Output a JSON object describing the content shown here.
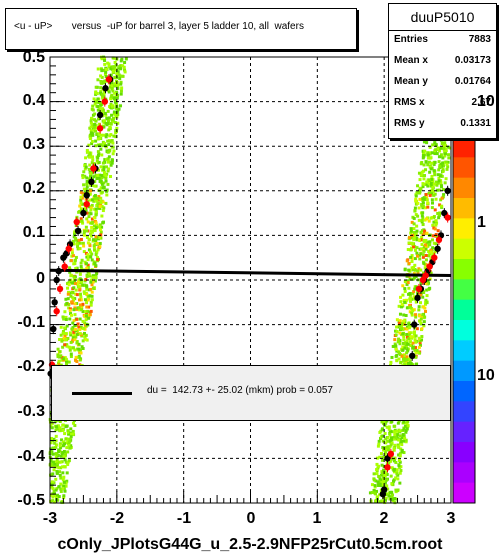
{
  "chart_data": {
    "type": "scatter",
    "title": "<u - uP>       versus  -uP for barrel 3, layer 5 ladder 10, all  wafers",
    "xlim": [
      -3,
      3
    ],
    "ylim": [
      -0.5,
      0.5
    ],
    "x_ticks": [
      "-3",
      "-2",
      "-1",
      "0",
      "1",
      "2",
      "3"
    ],
    "y_ticks": [
      "-0.5",
      "-0.4",
      "-0.3",
      "-0.2",
      "-0.1",
      "0",
      "0.1",
      "0.2",
      "0.3",
      "0.4",
      "0.5"
    ],
    "grid": true,
    "palette_labels": [
      "10",
      "1",
      "10"
    ],
    "stats": {
      "name": "duuP5010",
      "rows": [
        {
          "label": "Entries",
          "value": "7883"
        },
        {
          "label": "Mean x",
          "value": "0.03173"
        },
        {
          "label": "Mean y",
          "value": "0.01764"
        },
        {
          "label": "RMS x",
          "value": "2.67"
        },
        {
          "label": "RMS y",
          "value": "0.1331"
        }
      ]
    },
    "fit_legend": "du =  142.73 +- 25.02 (mkm) prob = 0.057",
    "fit_line": {
      "x": [
        -3,
        3
      ],
      "y": [
        0.022,
        0.01
      ]
    },
    "band_left": {
      "y": [
        -0.5,
        0.5
      ],
      "x": [
        -3.0,
        -2.05
      ]
    },
    "band_right": {
      "y": [
        -0.5,
        0.5
      ],
      "x": [
        1.98,
        3.0
      ]
    },
    "series": [
      {
        "name": "",
        "color": "#000000",
        "points": [
          [
            -2.99,
            -0.21
          ],
          [
            -2.95,
            -0.11
          ],
          [
            -2.93,
            -0.05
          ],
          [
            -2.9,
            0.0
          ],
          [
            -2.87,
            0.02
          ],
          [
            -2.8,
            0.05
          ],
          [
            -2.75,
            0.06
          ],
          [
            -2.7,
            0.08
          ],
          [
            -2.58,
            0.11
          ],
          [
            -2.5,
            0.15
          ],
          [
            -2.45,
            0.19
          ],
          [
            -2.38,
            0.22
          ],
          [
            -2.32,
            0.25
          ],
          [
            -2.25,
            0.37
          ],
          [
            -2.17,
            0.43
          ],
          [
            -2.1,
            0.45
          ],
          [
            1.98,
            -0.48
          ],
          [
            2.0,
            -0.47
          ],
          [
            2.05,
            -0.4
          ],
          [
            2.38,
            -0.24
          ],
          [
            2.42,
            -0.17
          ],
          [
            2.45,
            -0.1
          ],
          [
            2.5,
            -0.04
          ],
          [
            2.55,
            -0.02
          ],
          [
            2.6,
            0.0
          ],
          [
            2.65,
            0.02
          ],
          [
            2.72,
            0.04
          ],
          [
            2.8,
            0.07
          ],
          [
            2.85,
            0.1
          ],
          [
            2.9,
            0.15
          ],
          [
            2.95,
            0.2
          ]
        ]
      },
      {
        "name": "",
        "color": "#ff0000",
        "points": [
          [
            -2.97,
            -0.19
          ],
          [
            -2.9,
            -0.07
          ],
          [
            -2.85,
            -0.02
          ],
          [
            -2.78,
            0.03
          ],
          [
            -2.72,
            0.07
          ],
          [
            -2.6,
            0.13
          ],
          [
            -2.45,
            0.17
          ],
          [
            -2.35,
            0.25
          ],
          [
            -2.25,
            0.34
          ],
          [
            -2.18,
            0.4
          ],
          [
            -2.12,
            0.45
          ],
          [
            2.05,
            -0.42
          ],
          [
            2.1,
            -0.39
          ],
          [
            2.52,
            -0.02
          ],
          [
            2.58,
            0.0
          ],
          [
            2.62,
            0.01
          ],
          [
            2.68,
            0.03
          ],
          [
            2.75,
            0.05
          ],
          [
            2.82,
            0.09
          ],
          [
            2.95,
            0.14
          ]
        ]
      }
    ]
  },
  "footer": "cOnly_JPlotsG44G_u_2.5-2.9NFP25rCut0.5cm.root"
}
